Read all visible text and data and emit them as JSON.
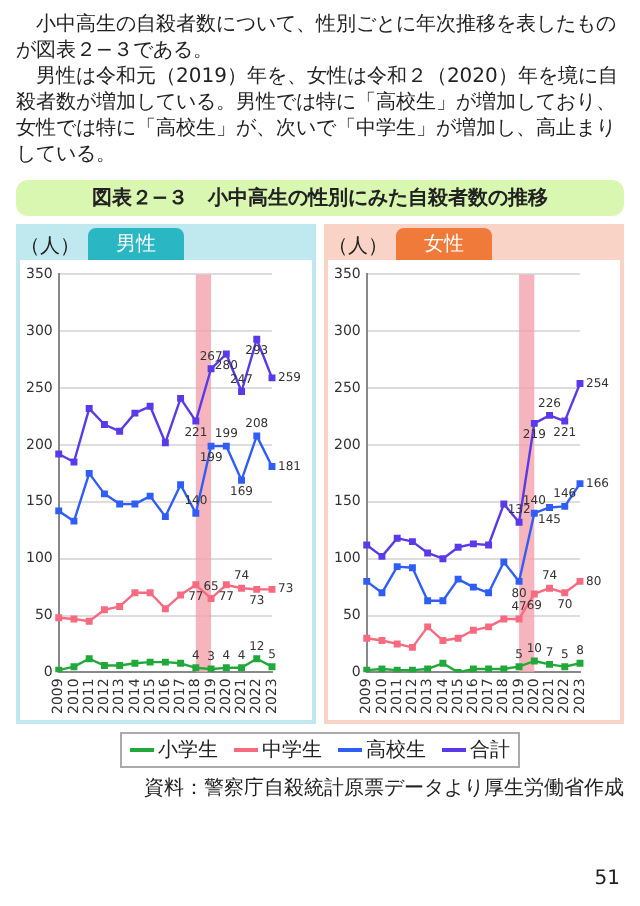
{
  "chart_data": [
    {
      "type": "line",
      "title": "男性",
      "ylabel": "（人）",
      "annotations": [
        "小中高生の自殺者数について、性別ごとに年次推移を表したものが図表２−３である。",
        "男性は令和元（2019）年を、女性は令和２（2020）年を境に自殺者数が増加している。男性では特に「高校生」が増加しており、女性では特に「高校生」が、次いで「中学生」が増加し、高止まりしている。",
        "図表２−３　小中高生の性別にみた自殺者数の推移"
      ],
      "categories": [
        "2009",
        "2010",
        "2011",
        "2012",
        "2013",
        "2014",
        "2015",
        "2016",
        "2017",
        "2018",
        "2019",
        "2020",
        "2021",
        "2022",
        "2023"
      ],
      "ylim": [
        0,
        350
      ],
      "yticks": [
        0,
        50,
        100,
        150,
        200,
        250,
        300,
        350
      ],
      "grid": "y",
      "marker": "square",
      "legend": "bottom",
      "bands": [
        {
          "axis": "x",
          "from": "2018",
          "to": "2019",
          "color": "#f4a3ad"
        }
      ],
      "series": [
        {
          "name": "小学生",
          "color": "#22a83a",
          "values": [
            2,
            5,
            12,
            6,
            6,
            8,
            9,
            9,
            8,
            4,
            3,
            4,
            4,
            12,
            5
          ],
          "value_labels": [
            null,
            null,
            null,
            null,
            null,
            null,
            null,
            null,
            null,
            "4",
            "3",
            "4",
            "4",
            "12",
            "5"
          ]
        },
        {
          "name": "中学生",
          "color": "#f76a80",
          "values": [
            48,
            47,
            45,
            55,
            58,
            70,
            70,
            56,
            68,
            77,
            65,
            77,
            74,
            73,
            73
          ],
          "value_labels": [
            null,
            null,
            null,
            null,
            null,
            null,
            null,
            null,
            null,
            "77",
            "65",
            "77",
            "74",
            "73",
            "73"
          ]
        },
        {
          "name": "高校生",
          "color": "#2f5df5",
          "values": [
            142,
            133,
            175,
            157,
            148,
            148,
            155,
            137,
            165,
            140,
            199,
            199,
            169,
            208,
            181
          ],
          "value_labels": [
            null,
            null,
            null,
            null,
            null,
            null,
            null,
            null,
            null,
            "140",
            "199",
            "199",
            "169",
            "208",
            "181"
          ]
        },
        {
          "name": "合計",
          "color": "#5a3ae8",
          "values": [
            192,
            185,
            232,
            218,
            212,
            228,
            234,
            202,
            241,
            221,
            267,
            280,
            247,
            293,
            259
          ],
          "value_labels": [
            null,
            null,
            null,
            null,
            null,
            null,
            null,
            null,
            null,
            "221",
            "267",
            "280",
            "247",
            "293",
            "259"
          ]
        }
      ]
    },
    {
      "type": "line",
      "title": "女性",
      "ylabel": "（人）",
      "annotations": [
        "資料：警察庁自殺統計原票データより厚生労働省作成",
        "51"
      ],
      "categories": [
        "2009",
        "2010",
        "2011",
        "2012",
        "2013",
        "2014",
        "2015",
        "2016",
        "2017",
        "2018",
        "2019",
        "2020",
        "2021",
        "2022",
        "2023"
      ],
      "ylim": [
        0,
        350
      ],
      "yticks": [
        0,
        50,
        100,
        150,
        200,
        250,
        300,
        350
      ],
      "grid": "y",
      "marker": "square",
      "bands": [
        {
          "axis": "x",
          "from": "2019",
          "to": "2020",
          "color": "#f4a3ad"
        }
      ],
      "series": [
        {
          "color": "#22a83a",
          "values": [
            2,
            3,
            2,
            2,
            3,
            8,
            0,
            3,
            3,
            3,
            5,
            10,
            7,
            5,
            8
          ],
          "value_labels": [
            null,
            null,
            null,
            null,
            null,
            null,
            null,
            null,
            null,
            null,
            "5",
            "10",
            "7",
            "5",
            "8"
          ]
        },
        {
          "color": "#f76a80",
          "values": [
            30,
            28,
            25,
            22,
            40,
            28,
            30,
            37,
            40,
            47,
            47,
            69,
            74,
            70,
            80
          ],
          "value_labels": [
            null,
            null,
            null,
            null,
            null,
            null,
            null,
            null,
            null,
            null,
            "47",
            "69",
            "74",
            "70",
            "80"
          ]
        },
        {
          "color": "#2f5df5",
          "values": [
            80,
            70,
            93,
            92,
            63,
            63,
            82,
            75,
            70,
            97,
            80,
            140,
            145,
            146,
            166
          ],
          "value_labels": [
            null,
            null,
            null,
            null,
            null,
            null,
            null,
            null,
            null,
            null,
            "80",
            "140",
            "145",
            "146",
            "166"
          ]
        },
        {
          "color": "#5a3ae8",
          "values": [
            112,
            102,
            118,
            115,
            105,
            100,
            110,
            113,
            112,
            148,
            132,
            219,
            226,
            221,
            254
          ],
          "value_labels": [
            null,
            null,
            null,
            null,
            null,
            null,
            null,
            null,
            null,
            null,
            "132",
            "219",
            "226",
            "221",
            "254"
          ]
        }
      ]
    }
  ]
}
